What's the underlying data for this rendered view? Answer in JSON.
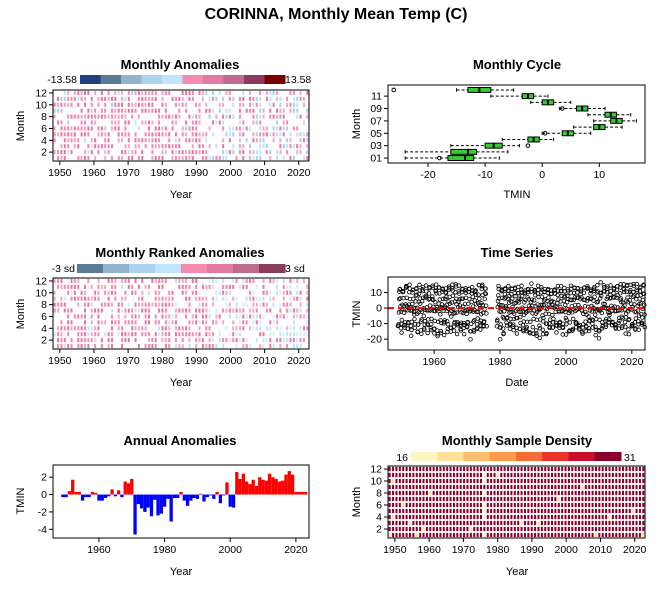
{
  "title": "CORINNA, Monthly Mean Temp (C)",
  "colors": {
    "anomaly_scale": [
      "#1f3f7f",
      "#5b7a93",
      "#93b3cc",
      "#a9d3ee",
      "#bfe4fb",
      "#f58bb0",
      "#e47aa3",
      "#bf6a8e",
      "#8b3c5e",
      "#7a0000"
    ],
    "ranked_scale": [
      "#5b7a93",
      "#93b3cc",
      "#a9d3ee",
      "#bfe4fb",
      "#f58bb0",
      "#e47aa3",
      "#bf6a8e",
      "#8b3c5e"
    ],
    "density_scale": [
      "#fff5c0",
      "#fde199",
      "#fdbd6c",
      "#fc9a4a",
      "#f46c36",
      "#e7352a",
      "#c8102c",
      "#8a0029"
    ],
    "box_fill": "#33cc33",
    "positive_bar": "#ff0000",
    "negative_bar": "#0000ff",
    "zero_line": "#ff0000"
  },
  "chart_data": [
    {
      "type": "heatmap",
      "title": "Monthly Anomalies",
      "xlabel": "Year",
      "ylabel": "Month",
      "xlim": [
        1948,
        2023
      ],
      "ylim": [
        0.5,
        12.5
      ],
      "x_ticks": [
        1950,
        1960,
        1970,
        1980,
        1990,
        2000,
        2010,
        2020
      ],
      "y_ticks": [
        2,
        4,
        6,
        8,
        10,
        12
      ],
      "legend_min_label": "-13.58",
      "legend_max_label": "13.58",
      "legend_placement": "top"
    },
    {
      "type": "box",
      "title": "Monthly Cycle",
      "xlabel": "TMIN",
      "ylabel": "Month",
      "xlim": [
        -27,
        18
      ],
      "x_ticks": [
        -20,
        -10,
        0,
        10
      ],
      "y_tick_labels": [
        "01",
        "03",
        "05",
        "07",
        "09",
        "11"
      ],
      "boxes": [
        {
          "month": 1,
          "min": -24,
          "q1": -16.5,
          "median": -13.5,
          "q3": -12,
          "max": -7.5
        },
        {
          "month": 2,
          "min": -24,
          "q1": -16,
          "median": -13,
          "q3": -11.5,
          "max": -6
        },
        {
          "month": 3,
          "min": -16,
          "q1": -10,
          "median": -8.5,
          "q3": -7,
          "max": -4
        },
        {
          "month": 4,
          "min": -7,
          "q1": -2.5,
          "median": -1.5,
          "q3": -0.5,
          "max": 2
        },
        {
          "month": 5,
          "min": 0,
          "q1": 3.5,
          "median": 4.5,
          "q3": 5.5,
          "max": 8.5
        },
        {
          "month": 6,
          "min": 5.5,
          "q1": 9,
          "median": 10,
          "q3": 11,
          "max": 14
        },
        {
          "month": 7,
          "min": 9,
          "q1": 12,
          "median": 13,
          "q3": 14,
          "max": 16.5
        },
        {
          "month": 8,
          "min": 8,
          "q1": 11,
          "median": 12,
          "q3": 13,
          "max": 15.5
        },
        {
          "month": 9,
          "min": 3,
          "q1": 6,
          "median": 7,
          "q3": 8,
          "max": 11
        },
        {
          "month": 10,
          "min": -2,
          "q1": 0,
          "median": 1,
          "q3": 2,
          "max": 5
        },
        {
          "month": 11,
          "min": -9,
          "q1": -3.5,
          "median": -2.5,
          "q3": -1.5,
          "max": 1
        },
        {
          "month": 12,
          "min": -15,
          "q1": -13,
          "median": -11,
          "q3": -9,
          "max": -5
        }
      ],
      "outliers": [
        [
          -26,
          12
        ],
        [
          -18,
          1
        ],
        [
          0.5,
          5
        ],
        [
          3.5,
          9
        ],
        [
          -2.5,
          3
        ]
      ]
    },
    {
      "type": "heatmap",
      "title": "Monthly Ranked Anomalies",
      "xlabel": "Year",
      "ylabel": "Month",
      "xlim": [
        1948,
        2023
      ],
      "ylim": [
        0.5,
        12.5
      ],
      "x_ticks": [
        1950,
        1960,
        1970,
        1980,
        1990,
        2000,
        2010,
        2020
      ],
      "y_ticks": [
        2,
        4,
        6,
        8,
        10,
        12
      ],
      "legend_min_label": "-3 sd",
      "legend_max_label": "3 sd",
      "legend_placement": "top"
    },
    {
      "type": "scatter",
      "title": "Time Series",
      "xlabel": "Date",
      "ylabel": "TMIN",
      "xlim": [
        1946,
        2024
      ],
      "ylim": [
        -27,
        20
      ],
      "x_ticks": [
        1960,
        1980,
        2000,
        2020
      ],
      "y_ticks": [
        -20,
        -10,
        0,
        10
      ],
      "mean_line": 0
    },
    {
      "type": "bar",
      "title": "Annual Anomalies",
      "xlabel": "Year",
      "ylabel": "TMIN",
      "xlim": [
        1946,
        2024
      ],
      "ylim": [
        -5,
        3.4
      ],
      "x_ticks": [
        1960,
        1980,
        2000,
        2020
      ],
      "y_ticks": [
        -4,
        -2,
        0,
        2
      ],
      "x": [
        1949,
        1950,
        1951,
        1952,
        1953,
        1954,
        1955,
        1956,
        1957,
        1958,
        1959,
        1960,
        1961,
        1962,
        1963,
        1964,
        1965,
        1966,
        1967,
        1968,
        1969,
        1970,
        1971,
        1972,
        1973,
        1974,
        1975,
        1976,
        1977,
        1978,
        1979,
        1980,
        1981,
        1982,
        1983,
        1984,
        1985,
        1986,
        1987,
        1988,
        1989,
        1990,
        1991,
        1992,
        1993,
        1994,
        1995,
        1996,
        1997,
        1998,
        1999,
        2000,
        2001,
        2002,
        2003,
        2004,
        2005,
        2006,
        2007,
        2008,
        2009,
        2010,
        2011,
        2012,
        2013,
        2014,
        2015,
        2016,
        2017,
        2018,
        2019,
        2020,
        2021,
        2022,
        2023
      ],
      "values": [
        -0.3,
        -0.3,
        0.4,
        1.7,
        0.3,
        0.3,
        -0.7,
        -0.3,
        -0.3,
        0.3,
        0.2,
        -0.7,
        -0.7,
        -0.4,
        -0.2,
        0.6,
        -0.2,
        0.5,
        -0.3,
        1.5,
        1.3,
        1.8,
        -4.6,
        -1.1,
        -1.6,
        -2.0,
        -1.5,
        -2.5,
        -0.6,
        -2.4,
        -2.2,
        -1.4,
        -0.5,
        -3.1,
        -0.4,
        -0.4,
        0.3,
        -0.7,
        -1.3,
        -0.7,
        -0.4,
        -0.5,
        0.1,
        -0.8,
        -0.3,
        -0.1,
        -0.5,
        0.3,
        -1.0,
        -0.1,
        1.4,
        -1.4,
        -1.5,
        2.6,
        1.8,
        2.4,
        1.5,
        1.2,
        1.7,
        1.0,
        2.0,
        1.7,
        1.6,
        2.4,
        2.0,
        1.8,
        1.5,
        1.6,
        2.3,
        2.7,
        2.3,
        0.3,
        0.3,
        0.3,
        0.3
      ]
    },
    {
      "type": "heatmap",
      "title": "Monthly Sample Density",
      "xlabel": "Year",
      "ylabel": "Month",
      "xlim": [
        1948,
        2023
      ],
      "ylim": [
        0.5,
        12.5
      ],
      "x_ticks": [
        1950,
        1960,
        1970,
        1980,
        1990,
        2000,
        2010,
        2020
      ],
      "y_ticks": [
        2,
        4,
        6,
        8,
        10,
        12
      ],
      "legend_min_label": "16",
      "legend_max_label": "31",
      "legend_placement": "top"
    }
  ]
}
